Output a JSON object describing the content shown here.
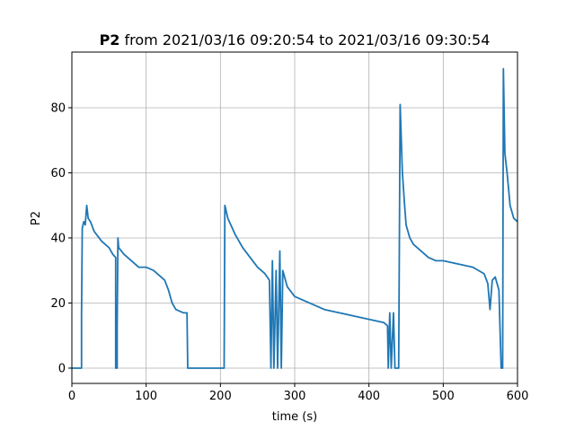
{
  "chart_data": {
    "type": "line",
    "title": [
      "P2",
      "from 2021/03/16 09:20:54 to 2021/03/16 09:30:54"
    ],
    "xlabel": "time (s)",
    "ylabel": "P2",
    "x": [
      0,
      13,
      13,
      14,
      16,
      18,
      20,
      22,
      25,
      30,
      40,
      50,
      55,
      59,
      59,
      61,
      61,
      62,
      63,
      70,
      80,
      90,
      100,
      110,
      120,
      125,
      130,
      135,
      140,
      150,
      155,
      156,
      205,
      206,
      210,
      220,
      230,
      240,
      250,
      260,
      266,
      268,
      270,
      272,
      275,
      277,
      280,
      282,
      284,
      290,
      300,
      320,
      340,
      360,
      380,
      400,
      420,
      425,
      426,
      428,
      430,
      433,
      435,
      440,
      442,
      445,
      448,
      450,
      455,
      460,
      470,
      480,
      490,
      500,
      520,
      540,
      555,
      560,
      563,
      566,
      570,
      575,
      578,
      580,
      581,
      583,
      586,
      590,
      595,
      600
    ],
    "values": [
      0,
      0,
      16,
      43,
      45,
      44,
      50,
      46,
      45,
      42,
      39,
      37,
      35,
      34,
      0,
      0,
      13,
      40,
      37,
      35,
      33,
      31,
      31,
      30,
      28,
      27,
      24,
      20,
      18,
      17,
      17,
      0,
      0,
      50,
      46,
      41,
      37,
      34,
      31,
      29,
      27,
      0,
      33,
      0,
      30,
      0,
      36,
      0,
      30,
      25,
      22,
      20,
      18,
      17,
      16,
      15,
      14,
      13,
      0,
      17,
      0,
      17,
      0,
      0,
      81,
      60,
      50,
      44,
      40,
      38,
      36,
      34,
      33,
      33,
      32,
      31,
      29,
      26,
      18,
      27,
      28,
      24,
      0,
      0,
      92,
      66,
      60,
      50,
      46,
      45
    ],
    "color": "#1f77b4",
    "xlim": [
      0,
      600
    ],
    "xticks": [
      0,
      100,
      200,
      300,
      400,
      500,
      600
    ],
    "ylim": [
      -4.7,
      97.1
    ],
    "yticks": [
      0,
      20,
      40,
      60,
      80
    ],
    "grid": true
  }
}
